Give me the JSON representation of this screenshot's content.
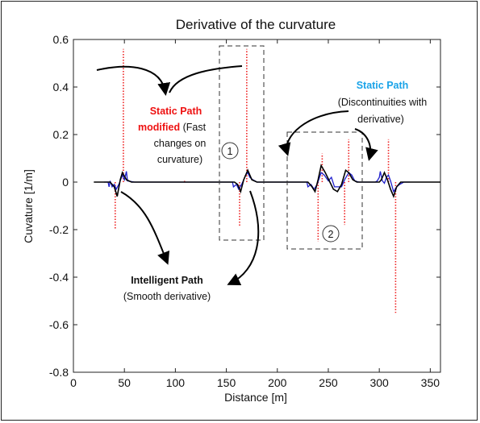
{
  "chart_data": {
    "type": "line",
    "title": "Derivative of the curvature",
    "xlabel": "Distance [m]",
    "ylabel": "Cuvature [1/m]",
    "xlim": [
      0,
      360
    ],
    "ylim": [
      -0.8,
      0.6
    ],
    "xticks": [
      "0",
      "50",
      "100",
      "150",
      "200",
      "250",
      "300",
      "350"
    ],
    "yticks": [
      "0.6",
      "0.4",
      "0.2",
      "0",
      "-0.2",
      "-0.4",
      "-0.6",
      "-0.8"
    ],
    "grid": false,
    "series": [
      {
        "color": "#ee2222",
        "style": "dotted",
        "spikes": [
          {
            "x": 41,
            "y": -0.2
          },
          {
            "x": 49,
            "y": 0.56
          },
          {
            "x": 109,
            "y": 0.01
          },
          {
            "x": 163,
            "y": -0.19
          },
          {
            "x": 170,
            "y": 0.56
          },
          {
            "x": 240,
            "y": -0.25
          },
          {
            "x": 244,
            "y": 0.12
          },
          {
            "x": 266,
            "y": -0.18
          },
          {
            "x": 270,
            "y": 0.18
          },
          {
            "x": 309,
            "y": 0.18
          },
          {
            "x": 316,
            "y": -0.55
          }
        ]
      },
      {
        "color": "#1f1fcc",
        "style": "solid",
        "points": [
          [
            30,
            0
          ],
          [
            34,
            0
          ],
          [
            35,
            -0.02
          ],
          [
            36,
            0.005
          ],
          [
            38,
            -0.02
          ],
          [
            40,
            -0.01
          ],
          [
            42,
            -0.03
          ],
          [
            45,
            -0.005
          ],
          [
            48,
            0.03
          ],
          [
            50,
            0.01
          ],
          [
            52,
            0.045
          ],
          [
            53,
            0.005
          ],
          [
            56,
            0.003
          ],
          [
            60,
            0
          ],
          [
            150,
            0
          ],
          [
            156,
            0
          ],
          [
            157,
            -0.02
          ],
          [
            160,
            -0.01
          ],
          [
            162,
            -0.03
          ],
          [
            165,
            -0.01
          ],
          [
            167,
            0.01
          ],
          [
            169,
            0.03
          ],
          [
            171,
            0.04
          ],
          [
            173,
            0.02
          ],
          [
            176,
            0.01
          ],
          [
            180,
            0
          ],
          [
            225,
            0
          ],
          [
            229,
            0
          ],
          [
            230,
            -0.02
          ],
          [
            233,
            -0.01
          ],
          [
            236,
            -0.03
          ],
          [
            239,
            -0.01
          ],
          [
            243,
            0.04
          ],
          [
            246,
            0.03
          ],
          [
            250,
            0.005
          ],
          [
            253,
            0.02
          ],
          [
            256,
            -0.02
          ],
          [
            260,
            -0.02
          ],
          [
            263,
            -0.02
          ],
          [
            266,
            0.01
          ],
          [
            270,
            0.04
          ],
          [
            273,
            0.03
          ],
          [
            276,
            0.005
          ],
          [
            280,
            0
          ],
          [
            296,
            0
          ],
          [
            298,
            0.005
          ],
          [
            300,
            0.02
          ],
          [
            301,
            0.045
          ],
          [
            303,
            0.005
          ],
          [
            305,
            -0.005
          ],
          [
            307,
            0.02
          ],
          [
            309,
            0.03
          ],
          [
            311,
            0.005
          ],
          [
            314,
            -0.04
          ],
          [
            317,
            -0.02
          ],
          [
            320,
            -0.01
          ],
          [
            324,
            0
          ],
          [
            330,
            0
          ]
        ]
      },
      {
        "color": "#000000",
        "style": "solid",
        "points": [
          [
            20,
            0
          ],
          [
            36,
            0
          ],
          [
            40,
            -0.02
          ],
          [
            43,
            -0.06
          ],
          [
            46,
            0.01
          ],
          [
            48,
            0.04
          ],
          [
            52,
            0.01
          ],
          [
            57,
            0
          ],
          [
            100,
            0
          ],
          [
            158,
            0
          ],
          [
            161,
            -0.01
          ],
          [
            164,
            -0.04
          ],
          [
            167,
            0.01
          ],
          [
            171,
            0.05
          ],
          [
            175,
            0.01
          ],
          [
            180,
            0
          ],
          [
            230,
            0
          ],
          [
            234,
            -0.02
          ],
          [
            237,
            -0.04
          ],
          [
            240,
            0.01
          ],
          [
            243,
            0.07
          ],
          [
            247,
            0.04
          ],
          [
            251,
            0.005
          ],
          [
            255,
            -0.03
          ],
          [
            259,
            -0.04
          ],
          [
            263,
            -0.01
          ],
          [
            267,
            0.05
          ],
          [
            270,
            0.04
          ],
          [
            274,
            0.01
          ],
          [
            278,
            0
          ],
          [
            300,
            0
          ],
          [
            302,
            0.01
          ],
          [
            305,
            0.04
          ],
          [
            308,
            0.01
          ],
          [
            311,
            -0.03
          ],
          [
            314,
            -0.06
          ],
          [
            317,
            -0.02
          ],
          [
            321,
            0
          ],
          [
            360,
            0
          ]
        ]
      }
    ],
    "annotations": {
      "static_modified_1": "Static Path",
      "static_modified_2": "modified",
      "static_modified_3": " (Fast",
      "static_modified_4": "changes on",
      "static_modified_5": "curvature)",
      "static_path_1": "Static Path",
      "static_path_2": "(Discontinuities with",
      "static_path_3": "derivative)",
      "intelligent_1": "Intelligent Path",
      "intelligent_2": "(Smooth derivative)",
      "box_1": "1",
      "box_2": "2"
    },
    "colors": {
      "static_modified": "#ee1111",
      "static_path": "#1aa3e8"
    }
  }
}
